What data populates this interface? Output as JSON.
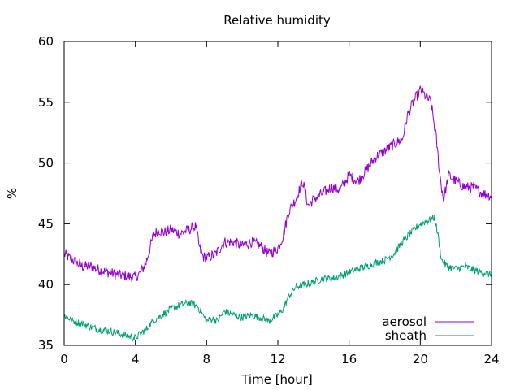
{
  "chart_data": {
    "type": "line",
    "title": "Relative humidity",
    "xlabel": "Time [hour]",
    "ylabel": "%",
    "xlim": [
      0,
      24
    ],
    "ylim": [
      35,
      60
    ],
    "xticks": [
      0,
      4,
      8,
      12,
      16,
      20,
      24
    ],
    "yticks": [
      35,
      40,
      45,
      50,
      55,
      60
    ],
    "grid": false,
    "legend_position": "bottom-right",
    "series": [
      {
        "name": "aerosol",
        "color": "#9400d3",
        "x": [
          0,
          0.5,
          1,
          1.5,
          2,
          2.5,
          3,
          3.5,
          4,
          4.3,
          4.6,
          5,
          5.3,
          5.6,
          6,
          6.5,
          7,
          7.4,
          7.6,
          7.8,
          8,
          8.5,
          9,
          9.5,
          10,
          10.5,
          11,
          11.5,
          12,
          12.3,
          12.6,
          13,
          13.4,
          13.7,
          14,
          14.5,
          15,
          15.5,
          16,
          16.5,
          17,
          17.5,
          18,
          18.5,
          19,
          19.3,
          19.6,
          19.8,
          20,
          20.3,
          20.6,
          20.9,
          21.1,
          21.3,
          21.6,
          22,
          22.5,
          23,
          23.5,
          24
        ],
        "values": [
          42.5,
          42.0,
          41.5,
          41.5,
          41.2,
          41.0,
          40.8,
          40.7,
          40.6,
          41.0,
          41.8,
          44.0,
          44.5,
          44.3,
          44.5,
          44.2,
          44.5,
          44.8,
          43.0,
          42.3,
          42.2,
          42.5,
          43.5,
          43.5,
          43.2,
          43.5,
          43.2,
          42.5,
          43.0,
          44.0,
          46.0,
          47.0,
          48.5,
          46.5,
          47.0,
          47.5,
          48.0,
          47.8,
          49.0,
          48.5,
          49.5,
          50.5,
          51.0,
          51.5,
          52.0,
          54.0,
          55.0,
          55.5,
          56.0,
          55.5,
          55.0,
          52.0,
          49.0,
          47.0,
          49.0,
          48.5,
          48.0,
          48.0,
          47.5,
          47.3
        ]
      },
      {
        "name": "sheath",
        "color": "#009e73",
        "x": [
          0,
          0.5,
          1,
          1.5,
          2,
          2.5,
          3,
          3.5,
          4,
          4.3,
          4.6,
          5,
          5.5,
          6,
          6.5,
          7,
          7.5,
          8,
          8.3,
          8.6,
          9,
          9.5,
          10,
          10.5,
          11,
          11.5,
          12,
          12.3,
          12.6,
          13,
          13.5,
          14,
          14.5,
          15,
          15.5,
          16,
          16.5,
          17,
          17.5,
          18,
          18.5,
          19,
          19.5,
          20,
          20.5,
          20.8,
          21,
          21.2,
          21.5,
          22,
          22.5,
          23,
          23.5,
          24
        ],
        "values": [
          37.5,
          37.0,
          36.8,
          36.5,
          36.3,
          36.2,
          36.0,
          35.8,
          35.6,
          36.0,
          36.3,
          37.0,
          37.5,
          38.0,
          38.3,
          38.5,
          38.2,
          37.0,
          37.2,
          37.0,
          37.8,
          37.5,
          37.3,
          37.5,
          37.3,
          37.0,
          37.5,
          38.0,
          39.0,
          39.8,
          40.0,
          40.2,
          40.5,
          40.5,
          40.7,
          41.0,
          41.3,
          41.5,
          41.8,
          42.0,
          42.5,
          43.5,
          44.3,
          45.0,
          45.3,
          45.5,
          44.0,
          42.0,
          41.5,
          41.3,
          41.5,
          41.2,
          41.0,
          40.8
        ]
      }
    ]
  }
}
